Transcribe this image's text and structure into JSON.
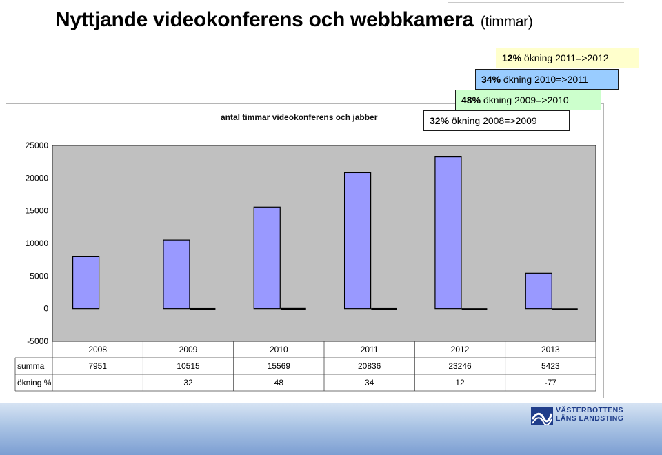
{
  "slide": {
    "title": "Nyttjande videokonferens och webbkamera",
    "unit": "(timmar)"
  },
  "callouts": [
    {
      "pct": "12%",
      "text": "ökning 2011=>2012",
      "color": "#ffffcc"
    },
    {
      "pct": "34%",
      "text": "ökning 2010=>2011",
      "color": "#99ccff"
    },
    {
      "pct": "48%",
      "text": "ökning 2009=>2010",
      "color": "#ccffcc"
    },
    {
      "pct": "32%",
      "text": "ökning 2008=>2009",
      "color": "#ffffff"
    }
  ],
  "chart_data": {
    "type": "bar",
    "title": "antal timmar videokonferens och jabber",
    "categories": [
      "2008",
      "2009",
      "2010",
      "2011",
      "2012",
      "2013"
    ],
    "series": [
      {
        "name": "summa",
        "values": [
          7951,
          10515,
          15569,
          20836,
          23246,
          5423
        ],
        "color": "#9999ff"
      },
      {
        "name": "ökning %",
        "values": [
          null,
          32,
          48,
          34,
          12,
          -77
        ],
        "color": "#000000"
      }
    ],
    "ylim": [
      -5000,
      25000
    ],
    "yticks": [
      25000,
      20000,
      15000,
      10000,
      5000,
      0,
      -5000
    ],
    "grid": false,
    "plot_background": "#c0c0c0",
    "table": {
      "header": [
        "2008",
        "2009",
        "2010",
        "2011",
        "2012",
        "2013"
      ],
      "rows": [
        {
          "label": "summa",
          "cells": [
            "7951",
            "10515",
            "15569",
            "20836",
            "23246",
            "5423"
          ]
        },
        {
          "label": "ökning %",
          "cells": [
            "",
            "32",
            "48",
            "34",
            "12",
            "-77"
          ]
        }
      ]
    }
  },
  "logo": {
    "line1": "VÄSTERBOTTENS",
    "line2": "LÄNS LANDSTING",
    "color": "#1f3d8a"
  }
}
